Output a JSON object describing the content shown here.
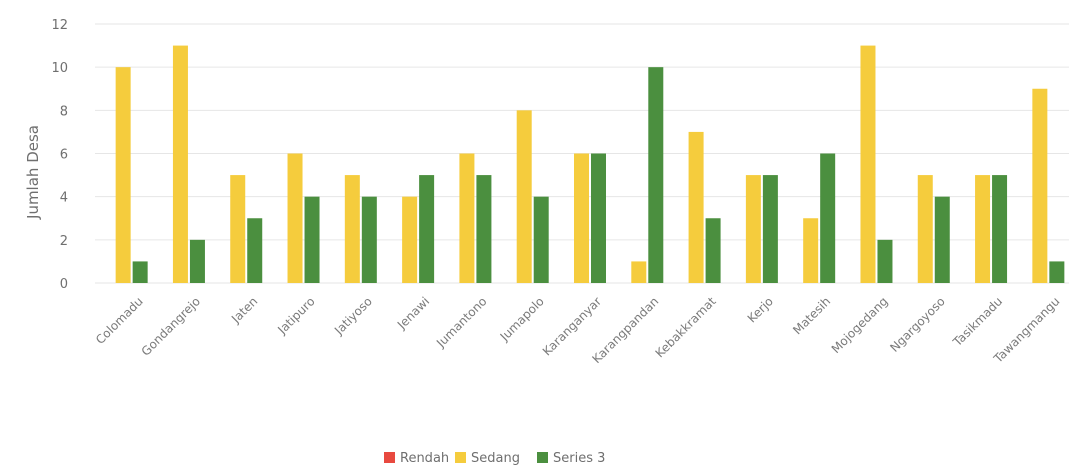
{
  "chart_data": {
    "type": "bar",
    "title": "",
    "xlabel": "",
    "ylabel": "Jumlah Desa",
    "ylim": [
      0,
      12
    ],
    "yticks": [
      0,
      2,
      4,
      6,
      8,
      10,
      12
    ],
    "grid": true,
    "legend_position": "bottom",
    "categories": [
      "Colomadu",
      "Gondangrejo",
      "Jaten",
      "Jatipuro",
      "Jatiyoso",
      "Jenawi",
      "Jumantono",
      "Jumapolo",
      "Karanganyar",
      "Karangpandan",
      "Kebakkramat",
      "Kerjo",
      "Matesih",
      "Mojogedang",
      "Ngargoyoso",
      "Tasikmadu",
      "Tawangmangu"
    ],
    "series": [
      {
        "name": "Rendah",
        "color": "#e8493f",
        "values": [
          0,
          0,
          0,
          0,
          0,
          0,
          0,
          0,
          0,
          0,
          0,
          0,
          0,
          0,
          0,
          0,
          0
        ]
      },
      {
        "name": "Sedang",
        "color": "#f5cc3d",
        "values": [
          10,
          11,
          5,
          6,
          5,
          4,
          6,
          8,
          6,
          1,
          7,
          5,
          3,
          11,
          5,
          5,
          9
        ]
      },
      {
        "name": "Series 3",
        "color": "#4b8f3f",
        "values": [
          1,
          2,
          3,
          4,
          4,
          5,
          5,
          4,
          6,
          10,
          3,
          5,
          6,
          2,
          4,
          5,
          1
        ]
      }
    ]
  }
}
